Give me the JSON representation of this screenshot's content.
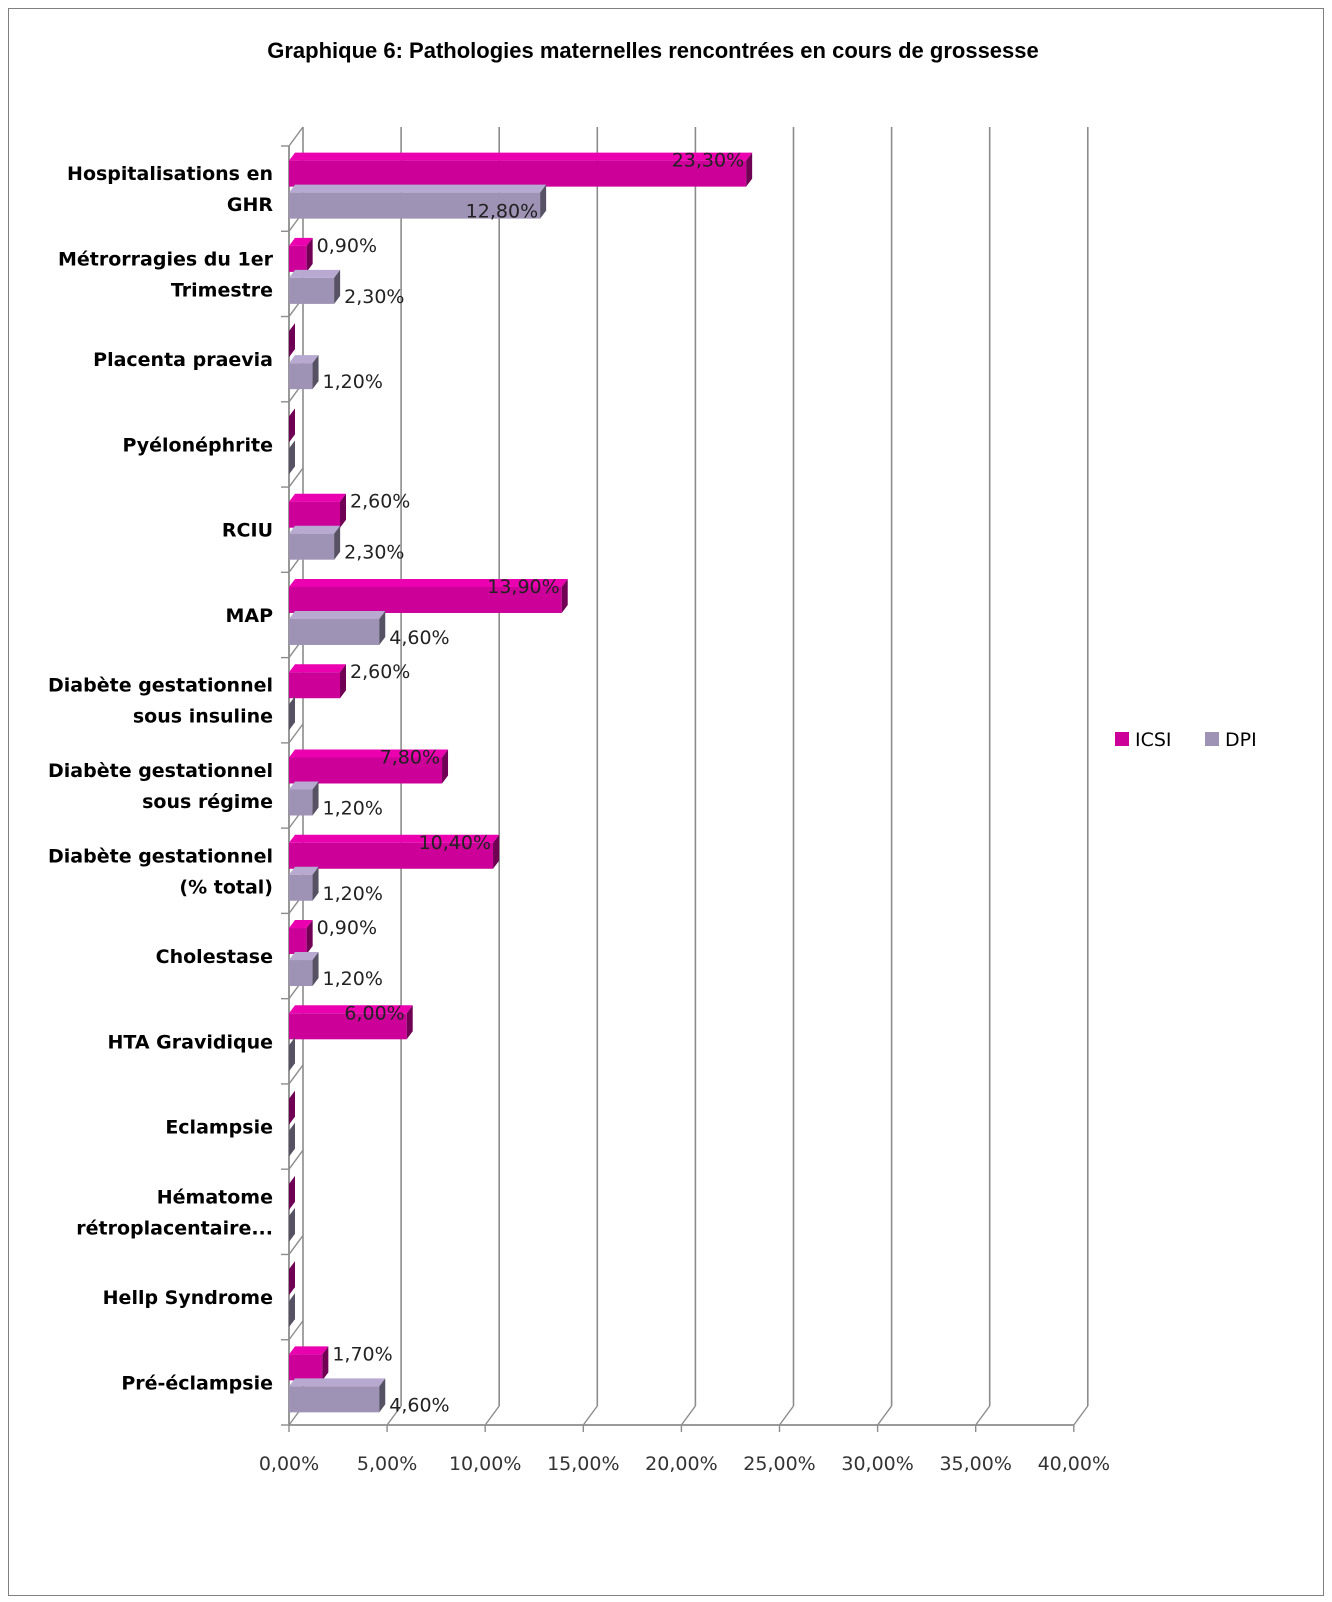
{
  "chart_data": {
    "type": "bar",
    "orientation": "horizontal",
    "title": "Graphique 6: Pathologies maternelles rencontrées en cours de grossesse",
    "categories": [
      [
        "Hospitalisations  en",
        "GHR"
      ],
      [
        "Métrorragies du 1er",
        "Trimestre"
      ],
      [
        "Placenta praevia"
      ],
      [
        "Pyélonéphrite"
      ],
      [
        "RCIU"
      ],
      [
        "MAP"
      ],
      [
        "Diabète gestationnel",
        "sous insuline"
      ],
      [
        "Diabète gestationnel",
        "sous régime"
      ],
      [
        "Diabète gestationnel",
        "(% total)"
      ],
      [
        "Cholestase"
      ],
      [
        "HTA Gravidique"
      ],
      [
        "Eclampsie"
      ],
      [
        "Hématome",
        "rétroplacentaire..."
      ],
      [
        "Hellp Syndrome"
      ],
      [
        "Pré-éclampsie"
      ]
    ],
    "series": [
      {
        "name": "ICSI",
        "color": "#CC0099",
        "values": [
          23.3,
          0.9,
          0,
          0,
          2.6,
          13.9,
          2.6,
          7.8,
          10.4,
          0.9,
          6.0,
          0,
          0,
          0,
          1.7
        ],
        "labels": [
          "23,30%",
          "0,90%",
          "",
          "",
          "2,60%",
          "13,90%",
          "2,60%",
          "7,80%",
          "10,40%",
          "0,90%",
          "6,00%",
          "",
          "",
          "",
          "1,70%"
        ]
      },
      {
        "name": "DPI",
        "color": "#9F93B5",
        "values": [
          12.8,
          2.3,
          1.2,
          0,
          2.3,
          4.6,
          0,
          1.2,
          1.2,
          1.2,
          0,
          0,
          0,
          0,
          4.6
        ],
        "labels": [
          "12,80%",
          "2,30%",
          "1,20%",
          "",
          "2,30%",
          "4,60%",
          "",
          "1,20%",
          "1,20%",
          "1,20%",
          "",
          "",
          "",
          "",
          "4,60%"
        ]
      }
    ],
    "xlim": [
      0,
      40
    ],
    "xticks": [
      "0,00%",
      "5,00%",
      "10,00%",
      "15,00%",
      "20,00%",
      "25,00%",
      "30,00%",
      "35,00%",
      "40,00%"
    ],
    "grid": true,
    "legend": "right"
  }
}
